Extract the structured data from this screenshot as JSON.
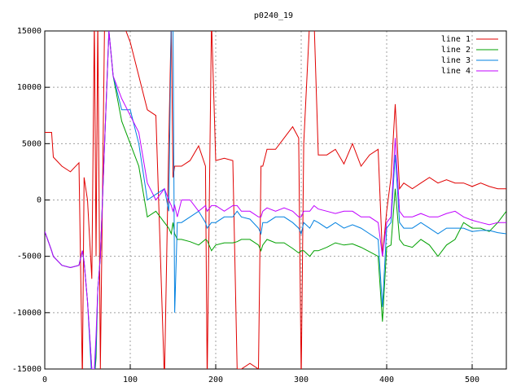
{
  "chart_data": {
    "type": "line",
    "title": "p0240_19",
    "x": [
      0,
      8,
      10,
      20,
      30,
      40,
      44,
      46,
      50,
      55,
      58,
      60,
      62,
      65,
      70,
      75,
      80,
      90,
      100,
      110,
      120,
      130,
      140,
      145,
      148,
      150,
      152,
      155,
      160,
      170,
      180,
      188,
      190,
      195,
      200,
      210,
      220,
      225,
      230,
      240,
      250,
      253,
      255,
      260,
      270,
      280,
      290,
      297,
      300,
      303,
      310,
      315,
      320,
      330,
      340,
      350,
      360,
      370,
      380,
      390,
      395,
      400,
      405,
      410,
      415,
      420,
      430,
      440,
      450,
      460,
      470,
      480,
      490,
      500,
      510,
      520,
      530,
      540
    ],
    "series": [
      {
        "name": "line 1",
        "color": "#e00000",
        "values": [
          6000,
          6000,
          3800,
          3000,
          2500,
          3300,
          -16000,
          2000,
          0,
          -7000,
          16000,
          -5000,
          16000,
          -15000,
          16000,
          16000,
          16000,
          16000,
          14000,
          11000,
          8000,
          7500,
          -16000,
          5000,
          16000,
          2000,
          3000,
          3000,
          3000,
          3500,
          4800,
          3000,
          -16000,
          16000,
          3500,
          3700,
          3500,
          -15000,
          -15000,
          -14500,
          -15000,
          3000,
          3000,
          4500,
          4500,
          5500,
          6500,
          5500,
          -16000,
          5000,
          16000,
          16000,
          4000,
          4000,
          4500,
          3200,
          5000,
          3000,
          4000,
          4500,
          -5000,
          -1000,
          2000,
          8500,
          1000,
          1500,
          1000,
          1500,
          2000,
          1500,
          1800,
          1500,
          1500,
          1200,
          1500,
          1200,
          1000,
          1000
        ]
      },
      {
        "name": "line 2",
        "color": "#00a000",
        "values": [
          -2800,
          -4500,
          -5000,
          -5800,
          -6000,
          -5800,
          -4500,
          -5500,
          -9000,
          -15000,
          -16000,
          -14000,
          -8000,
          -5000,
          5000,
          15000,
          11000,
          7000,
          5000,
          3000,
          -1500,
          -1000,
          -2000,
          -2500,
          -3000,
          -2000,
          -3000,
          -3500,
          -3500,
          -3700,
          -4000,
          -3500,
          -3600,
          -4500,
          -4000,
          -3800,
          -3800,
          -3700,
          -3500,
          -3500,
          -4000,
          -4500,
          -4000,
          -3500,
          -3800,
          -3800,
          -4300,
          -4700,
          -4500,
          -4500,
          -5000,
          -4500,
          -4500,
          -4200,
          -3800,
          -4000,
          -3900,
          -4200,
          -4600,
          -5000,
          -10800,
          -4200,
          -4000,
          1000,
          -3500,
          -4000,
          -4200,
          -3500,
          -4000,
          -5000,
          -4000,
          -3500,
          -2000,
          -2500,
          -2500,
          -2800,
          -2000,
          -1000
        ]
      },
      {
        "name": "line 3",
        "color": "#0080e0",
        "values": [
          -2800,
          -4500,
          -5000,
          -5800,
          -6000,
          -5800,
          -4500,
          -5500,
          -9000,
          -16000,
          -16000,
          -13000,
          -8000,
          -5000,
          5000,
          15000,
          11000,
          8000,
          8000,
          5000,
          0,
          500,
          1000,
          -1000,
          16000,
          16000,
          -10000,
          -2000,
          -2000,
          -1500,
          -1000,
          -2000,
          -2500,
          -2000,
          -2000,
          -1500,
          -1500,
          -1000,
          -1500,
          -1700,
          -2500,
          -3000,
          -2000,
          -2000,
          -1500,
          -1500,
          -2000,
          -2500,
          -3000,
          -2000,
          -2500,
          -1800,
          -2000,
          -2500,
          -2000,
          -2500,
          -2200,
          -2500,
          -3000,
          -3500,
          -9500,
          -2500,
          -2000,
          4000,
          -2000,
          -2500,
          -2500,
          -2000,
          -2500,
          -3000,
          -2500,
          -2500,
          -2500,
          -2800,
          -2700,
          -2700,
          -2900,
          -3000
        ]
      },
      {
        "name": "line 4",
        "color": "#c000ff",
        "values": [
          -2800,
          -4500,
          -5000,
          -5800,
          -6000,
          -5800,
          -4500,
          -5500,
          -9000,
          -15000,
          -15000,
          -12000,
          -8000,
          -5000,
          5000,
          15000,
          11000,
          9000,
          7500,
          6000,
          1500,
          0,
          1000,
          0,
          -500,
          -1000,
          -500,
          -1500,
          0,
          0,
          -1000,
          -500,
          -1000,
          -500,
          -500,
          -1000,
          -500,
          -500,
          -1000,
          -1000,
          -1500,
          -1500,
          -1000,
          -700,
          -1000,
          -700,
          -1000,
          -1500,
          -1500,
          -1000,
          -1000,
          -500,
          -800,
          -1000,
          -1200,
          -1000,
          -1000,
          -1500,
          -1500,
          -2000,
          -5000,
          -2000,
          -1500,
          5500,
          -1000,
          -1500,
          -1500,
          -1200,
          -1500,
          -1500,
          -1200,
          -1000,
          -1500,
          -1800,
          -2000,
          -2200,
          -2000,
          -2000
        ]
      }
    ],
    "xlim": [
      0,
      540
    ],
    "xticks": [
      0,
      100,
      200,
      300,
      400,
      500
    ],
    "ylim": [
      -15000,
      15000
    ],
    "yticks": [
      -15000,
      -10000,
      -5000,
      0,
      5000,
      10000,
      15000
    ],
    "grid": true,
    "legend": "top-right"
  }
}
